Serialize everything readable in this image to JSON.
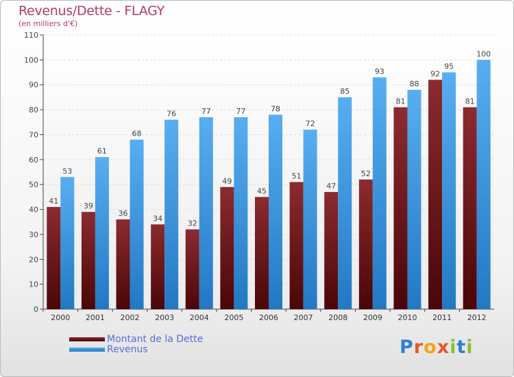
{
  "chart_data": {
    "type": "bar",
    "title": "Revenus/Dette - FLAGY",
    "subtitle": "(en milliers d'€)",
    "categories": [
      "2000",
      "2001",
      "2002",
      "2003",
      "2004",
      "2005",
      "2006",
      "2007",
      "2008",
      "2009",
      "2010",
      "2011",
      "2012"
    ],
    "series": [
      {
        "name": "Montant de la Dette",
        "color": "#7a1a1f",
        "values": [
          41,
          39,
          36,
          34,
          32,
          49,
          45,
          51,
          47,
          52,
          81,
          92,
          81
        ]
      },
      {
        "name": "Revenus",
        "color": "#4aa2e8",
        "values": [
          53,
          61,
          68,
          76,
          77,
          77,
          78,
          72,
          85,
          93,
          88,
          95,
          100
        ]
      }
    ],
    "ylim": [
      0,
      110
    ],
    "yticks": [
      0,
      10,
      20,
      30,
      40,
      50,
      60,
      70,
      80,
      90,
      100,
      110
    ],
    "grid": true,
    "legend_position": "bottom-left"
  },
  "logo": {
    "letters": [
      {
        "char": "P",
        "color": "#2e7fd1"
      },
      {
        "char": "r",
        "color": "#e7572a"
      },
      {
        "char": "o",
        "color": "#f2a517"
      },
      {
        "char": "x",
        "color": "#e7572a"
      },
      {
        "char": "i",
        "color": "#8bbf2f"
      },
      {
        "char": "t",
        "color": "#2e7fd1"
      },
      {
        "char": "i",
        "color": "#8bbf2f"
      }
    ]
  }
}
